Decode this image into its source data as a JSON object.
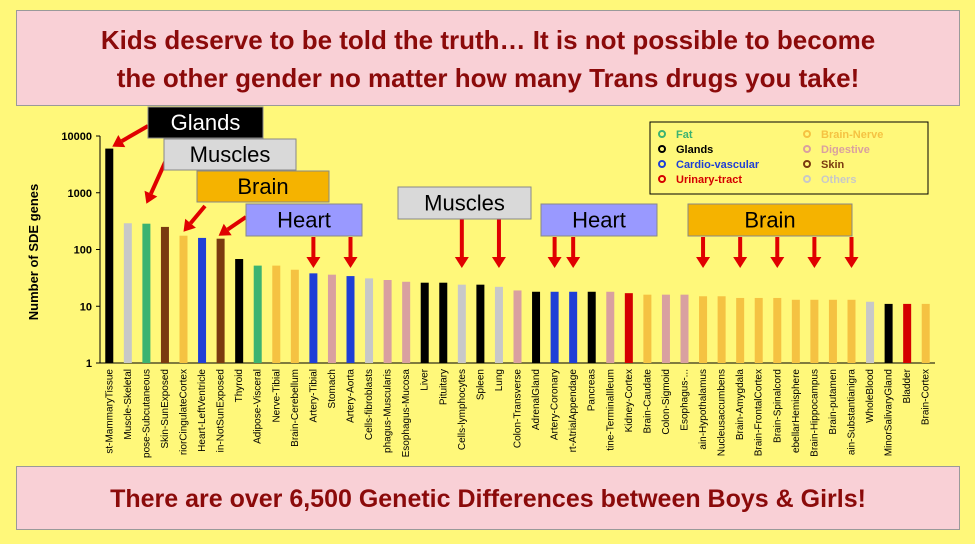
{
  "headline": {
    "line1": "Kids deserve to be told the truth… It is not possible to become",
    "line2": "the other gender no matter how many Trans drugs you take!"
  },
  "footer": "There are over 6,500 Genetic Differences between Boys & Girls!",
  "callouts": [
    {
      "text": "Glands",
      "color": "#000000",
      "text_color": "#ffffff"
    },
    {
      "text": "Muscles",
      "color": "#d9d9d9",
      "text_color": "#000000"
    },
    {
      "text": "Brain",
      "color": "#f5b300",
      "text_color": "#000000"
    },
    {
      "text": "Heart",
      "color": "#9999ff",
      "text_color": "#000000"
    },
    {
      "text": "Muscles",
      "color": "#d9d9d9",
      "text_color": "#000000"
    },
    {
      "text": "Heart",
      "color": "#9999ff",
      "text_color": "#000000"
    },
    {
      "text": "Brain",
      "color": "#f5b300",
      "text_color": "#000000"
    }
  ],
  "colors": {
    "fat": "#3cb371",
    "glands": "#000000",
    "cardio": "#1f3fd6",
    "urinary": "#d40000",
    "brain": "#f5c242",
    "digestive": "#d9a0a0",
    "skin": "#7a3a10",
    "others": "#c8c8c8",
    "arrow": "#e00000"
  },
  "chart_data": {
    "type": "bar",
    "ylabel": "Number of SDE genes",
    "yscale": "log",
    "ylim": [
      1,
      10000
    ],
    "yticks": [
      "1",
      "10",
      "100",
      "1000",
      "10000"
    ],
    "legend_position": "top-right",
    "legend": [
      {
        "label": "Fat",
        "color": "#3cb371"
      },
      {
        "label": "Glands",
        "color": "#000000"
      },
      {
        "label": "Cardio-vascular",
        "color": "#1f3fd6"
      },
      {
        "label": "Urinary-tract",
        "color": "#d40000"
      },
      {
        "label": "Brain-Nerve",
        "color": "#f5c242"
      },
      {
        "label": "Digestive",
        "color": "#d9a0a0"
      },
      {
        "label": "Skin",
        "color": "#7a3a10"
      },
      {
        "label": "Others",
        "color": "#c8c8c8"
      }
    ],
    "categories": [
      "st-MammaryTissue",
      "Muscle-Skeletal",
      "pose-Subcutaneous",
      "Skin-SunExposed",
      "riorCingulateCortex",
      "Heart-LeftVentricle",
      "in-NotSunExposed",
      "Thyroid",
      "Adipose-Visceral",
      "Nerve-Tibial",
      "Brain-Cerebellum",
      "Artery-Tibial",
      "Stomach",
      "Artery-Aorta",
      "Cells-fibroblasts",
      "phagus-Muscularis",
      "Esophagus-Mucosa",
      "Liver",
      "Pituitary",
      "Cells-lymphocytes",
      "Spleen",
      "Lung",
      "Colon-Transverse",
      "AdrenalGland",
      "Artery-Coronary",
      "rt-AtrialAppendage",
      "Pancreas",
      "tine-TerminalIleum",
      "Kidney-Cortex",
      "Brain-Caudate",
      "Colon-Sigmoid",
      "Esophagus-...",
      "ain-Hypothalamus",
      "Nucleusaccumbens",
      "Brain-Amygdala",
      "Brain-FrontalCortex",
      "Brain-Spinalcord",
      "ebellarHemisphere",
      "Brain-Hippocampus",
      "Brain-putamen",
      "ain-Substantianigra",
      "WholeBlood",
      "MinorSalivaryGland",
      "Bladder",
      "Brain-Cortex"
    ],
    "values": [
      6000,
      290,
      285,
      250,
      175,
      160,
      155,
      68,
      52,
      52,
      44,
      38,
      36,
      34,
      31,
      29,
      27,
      26,
      26,
      24,
      24,
      22,
      19,
      18,
      18,
      18,
      18,
      18,
      17,
      16,
      16,
      16,
      15,
      15,
      14,
      14,
      14,
      13,
      13,
      13,
      13,
      12,
      11,
      11,
      11
    ],
    "groups": [
      "glands",
      "others",
      "fat",
      "skin",
      "brain",
      "cardio",
      "skin",
      "glands",
      "fat",
      "brain",
      "brain",
      "cardio",
      "digestive",
      "cardio",
      "others",
      "digestive",
      "digestive",
      "glands",
      "glands",
      "others",
      "glands",
      "others",
      "digestive",
      "glands",
      "cardio",
      "cardio",
      "glands",
      "digestive",
      "urinary",
      "brain",
      "digestive",
      "digestive",
      "brain",
      "brain",
      "brain",
      "brain",
      "brain",
      "brain",
      "brain",
      "brain",
      "brain",
      "others",
      "glands",
      "urinary",
      "brain"
    ]
  }
}
